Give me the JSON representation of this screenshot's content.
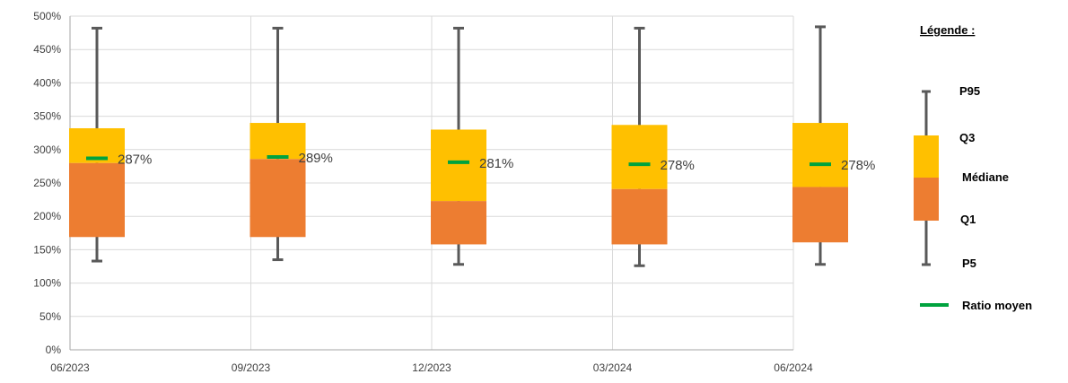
{
  "chart_data": {
    "type": "box",
    "categories": [
      "06/2023",
      "09/2023",
      "12/2023",
      "03/2024",
      "06/2024"
    ],
    "series": [
      {
        "name": "P5",
        "values": [
          133,
          135,
          128,
          126,
          128
        ]
      },
      {
        "name": "Q1",
        "values": [
          169,
          169,
          158,
          158,
          161
        ]
      },
      {
        "name": "Médiane",
        "values": [
          280,
          286,
          223,
          241,
          244
        ]
      },
      {
        "name": "Q3",
        "values": [
          332,
          340,
          330,
          337,
          340
        ]
      },
      {
        "name": "P95",
        "values": [
          482,
          482,
          482,
          482,
          484
        ]
      },
      {
        "name": "Ratio moyen",
        "values": [
          287,
          289,
          281,
          278,
          278
        ]
      }
    ],
    "mean_labels": [
      "287%",
      "289%",
      "281%",
      "278%",
      "278%"
    ],
    "ylim": [
      0,
      500
    ],
    "yticks": [
      "0%",
      "50%",
      "100%",
      "150%",
      "200%",
      "250%",
      "300%",
      "350%",
      "400%",
      "450%",
      "500%"
    ],
    "grid": true,
    "legend_position": "right",
    "colors": {
      "lower_box": "#ED7D31",
      "upper_box": "#FFC000",
      "whisker": "#595959",
      "mean": "#00A33E",
      "grid": "#D9D9D9",
      "axis": "#A6A6A6"
    }
  },
  "legend": {
    "title": "Légende :",
    "p95": "P95",
    "q3": "Q3",
    "median": "Médiane",
    "q1": "Q1",
    "p5": "P5",
    "mean": "Ratio moyen"
  }
}
